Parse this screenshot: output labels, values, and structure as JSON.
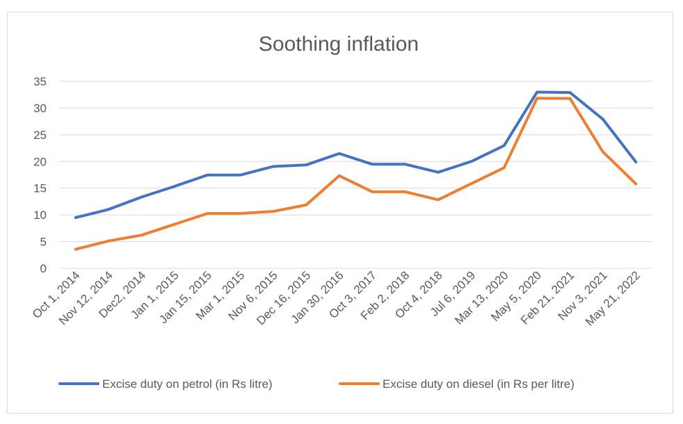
{
  "chart_data": {
    "type": "line",
    "title": "Soothing inflation",
    "xlabel": "",
    "ylabel": "",
    "ylim": [
      0,
      35
    ],
    "yticks": [
      "0",
      "5",
      "10",
      "15",
      "20",
      "25",
      "30",
      "35"
    ],
    "grid": true,
    "legend_position": "bottom",
    "categories": [
      "Oct 1, 2014",
      "Nov 12, 2014",
      "Dec2, 2014",
      "Jan 1, 2015",
      "Jan 15, 2015",
      "Mar 1, 2015",
      "Nov 6, 2015",
      "Dec 16, 2015",
      "Jan 30, 2016",
      "Oct 3, 2017",
      "Feb 2, 2018",
      "Oct 4, 2018",
      "Jul 6, 2019",
      "Mar 13, 2020",
      "May 5, 2020",
      "Feb 21, 2021",
      "Nov 3, 2021",
      "May 21, 2022"
    ],
    "series": [
      {
        "name": "Excise duty on petrol (in Rs litre)",
        "color": "#4472c4",
        "values": [
          9.48,
          11.02,
          13.34,
          15.34,
          17.46,
          17.46,
          19.06,
          19.36,
          21.48,
          19.48,
          19.48,
          17.98,
          19.98,
          22.98,
          32.98,
          32.9,
          27.9,
          19.9
        ]
      },
      {
        "name": "Excise duty on diesel (in Rs per litre)",
        "color": "#ed7d31",
        "values": [
          3.56,
          5.11,
          6.2,
          8.24,
          10.26,
          10.26,
          10.66,
          11.86,
          17.33,
          14.33,
          14.33,
          12.83,
          15.83,
          18.83,
          31.83,
          31.8,
          21.8,
          15.8
        ]
      }
    ]
  }
}
